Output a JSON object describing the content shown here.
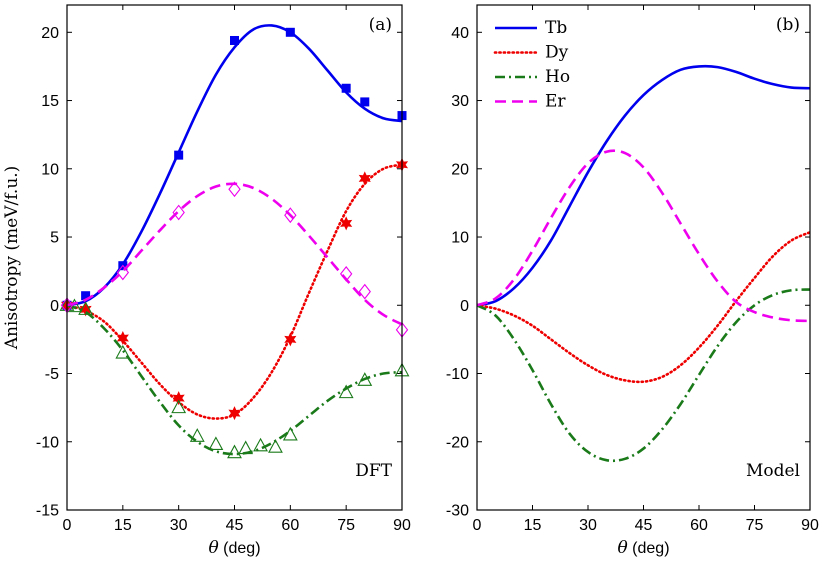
{
  "chart_data": [
    {
      "type": "line",
      "panel_label": "(a)",
      "annotation": "DFT",
      "xlabel_symbol": "θ",
      "xlabel_unit": " (deg)",
      "ylabel": "Anisotropy (meV/f.u.)",
      "xlim": [
        0,
        90
      ],
      "ylim": [
        -15,
        22
      ],
      "xticks": [
        0,
        15,
        30,
        45,
        60,
        75,
        90
      ],
      "yticks": [
        -15,
        -10,
        -5,
        0,
        5,
        10,
        15,
        20
      ],
      "series": [
        {
          "name": "Tb",
          "color": "#0000ee",
          "dash": "solid",
          "marker": "square",
          "curve_x": [
            0,
            5,
            10,
            15,
            20,
            25,
            30,
            35,
            40,
            45,
            50,
            55,
            60,
            65,
            70,
            75,
            80,
            85,
            90
          ],
          "curve_y": [
            0,
            0.3,
            1.3,
            3.0,
            5.4,
            8.2,
            11.2,
            14.2,
            16.9,
            18.9,
            20.2,
            20.5,
            20.0,
            18.8,
            17.2,
            15.6,
            14.4,
            13.7,
            13.5
          ],
          "points_x": [
            0,
            5,
            15,
            30,
            45,
            60,
            75,
            80,
            90
          ],
          "points_y": [
            0,
            0.7,
            2.9,
            11.0,
            19.4,
            20.0,
            15.9,
            14.9,
            13.9
          ]
        },
        {
          "name": "Dy",
          "color": "#ee0000",
          "dash": "dotted",
          "marker": "star",
          "curve_x": [
            0,
            5,
            10,
            15,
            20,
            25,
            30,
            35,
            40,
            45,
            50,
            55,
            60,
            65,
            70,
            75,
            80,
            85,
            90
          ],
          "curve_y": [
            0,
            -0.4,
            -1.2,
            -2.6,
            -4.2,
            -5.8,
            -7.1,
            -8.0,
            -8.3,
            -8.0,
            -6.8,
            -4.9,
            -2.3,
            0.9,
            4.0,
            6.9,
            8.9,
            10.0,
            10.3
          ],
          "points_x": [
            0,
            5,
            15,
            30,
            45,
            60,
            75,
            80,
            90
          ],
          "points_y": [
            0,
            -0.3,
            -2.4,
            -6.8,
            -7.9,
            -2.5,
            6.0,
            9.3,
            10.3
          ]
        },
        {
          "name": "Ho",
          "color": "#1a7a1a",
          "dash": "dashdot",
          "marker": "triangle",
          "curve_x": [
            0,
            5,
            10,
            15,
            20,
            25,
            30,
            35,
            40,
            45,
            50,
            55,
            60,
            65,
            70,
            75,
            80,
            85,
            90
          ],
          "curve_y": [
            0,
            -0.5,
            -1.7,
            -3.3,
            -5.2,
            -7.1,
            -8.8,
            -10.0,
            -10.7,
            -10.9,
            -10.7,
            -10.1,
            -9.2,
            -8.1,
            -7.0,
            -6.1,
            -5.4,
            -5.0,
            -4.9
          ],
          "points_x": [
            0,
            2,
            5,
            15,
            30,
            35,
            40,
            45,
            48,
            52,
            56,
            60,
            75,
            80,
            90
          ],
          "points_y": [
            0,
            -0.1,
            -0.3,
            -3.5,
            -7.5,
            -9.6,
            -10.2,
            -10.8,
            -10.5,
            -10.3,
            -10.4,
            -9.5,
            -6.4,
            -5.5,
            -4.8
          ]
        },
        {
          "name": "Er",
          "color": "#ee00ee",
          "dash": "dashed",
          "marker": "diamond",
          "curve_x": [
            0,
            5,
            10,
            15,
            20,
            25,
            30,
            35,
            40,
            45,
            50,
            55,
            60,
            65,
            70,
            75,
            80,
            85,
            90
          ],
          "curve_y": [
            0,
            0.4,
            1.3,
            2.5,
            4.0,
            5.5,
            6.9,
            8.0,
            8.7,
            8.9,
            8.6,
            7.8,
            6.6,
            5.1,
            3.5,
            1.9,
            0.4,
            -0.7,
            -1.4
          ],
          "points_x": [
            0,
            15,
            30,
            45,
            60,
            75,
            80,
            90
          ],
          "points_y": [
            0,
            2.4,
            6.8,
            8.5,
            6.6,
            2.3,
            1.0,
            -1.8
          ]
        }
      ]
    },
    {
      "type": "line",
      "panel_label": "(b)",
      "annotation": "Model",
      "xlabel_symbol": "θ",
      "xlabel_unit": " (deg)",
      "xlim": [
        0,
        90
      ],
      "ylim": [
        -30,
        44
      ],
      "xticks": [
        0,
        15,
        30,
        45,
        60,
        75,
        90
      ],
      "yticks": [
        -30,
        -20,
        -10,
        0,
        10,
        20,
        30,
        40
      ],
      "legend": [
        "Tb",
        "Dy",
        "Ho",
        "Er"
      ],
      "legend_position": "top-left",
      "series": [
        {
          "name": "Tb",
          "color": "#0000ee",
          "dash": "solid",
          "curve_x": [
            0,
            5,
            10,
            15,
            20,
            25,
            30,
            35,
            40,
            45,
            50,
            55,
            60,
            65,
            70,
            75,
            80,
            85,
            90
          ],
          "curve_y": [
            0,
            0.6,
            2.5,
            5.5,
            9.5,
            14.5,
            19.5,
            24.0,
            27.8,
            30.8,
            33.0,
            34.5,
            35.0,
            34.9,
            34.2,
            33.2,
            32.4,
            31.9,
            31.8
          ]
        },
        {
          "name": "Dy",
          "color": "#ee0000",
          "dash": "dotted",
          "curve_x": [
            0,
            5,
            10,
            15,
            20,
            25,
            30,
            35,
            40,
            45,
            50,
            55,
            60,
            65,
            70,
            75,
            80,
            85,
            90
          ],
          "curve_y": [
            0,
            -0.5,
            -1.5,
            -3.0,
            -5.0,
            -7.0,
            -8.8,
            -10.2,
            -11.0,
            -11.2,
            -10.5,
            -8.8,
            -6.2,
            -3.0,
            0.6,
            4.0,
            7.2,
            9.5,
            10.7
          ]
        },
        {
          "name": "Ho",
          "color": "#1a7a1a",
          "dash": "dashdot",
          "curve_x": [
            0,
            5,
            10,
            15,
            20,
            25,
            30,
            35,
            40,
            45,
            50,
            55,
            60,
            65,
            70,
            75,
            80,
            85,
            90
          ],
          "curve_y": [
            0,
            -1.5,
            -5.0,
            -9.5,
            -14.5,
            -18.8,
            -21.5,
            -22.7,
            -22.5,
            -21.0,
            -18.2,
            -14.5,
            -10.2,
            -6.0,
            -2.5,
            0,
            1.5,
            2.2,
            2.3
          ]
        },
        {
          "name": "Er",
          "color": "#ee00ee",
          "dash": "dashed",
          "curve_x": [
            0,
            5,
            10,
            15,
            20,
            25,
            30,
            35,
            40,
            45,
            50,
            55,
            60,
            65,
            70,
            75,
            80,
            85,
            90
          ],
          "curve_y": [
            0,
            1.0,
            3.8,
            8.0,
            12.8,
            17.3,
            20.8,
            22.5,
            22.3,
            20.2,
            16.5,
            12.0,
            7.5,
            3.5,
            0.5,
            -1.0,
            -1.8,
            -2.2,
            -2.3
          ]
        }
      ]
    }
  ]
}
